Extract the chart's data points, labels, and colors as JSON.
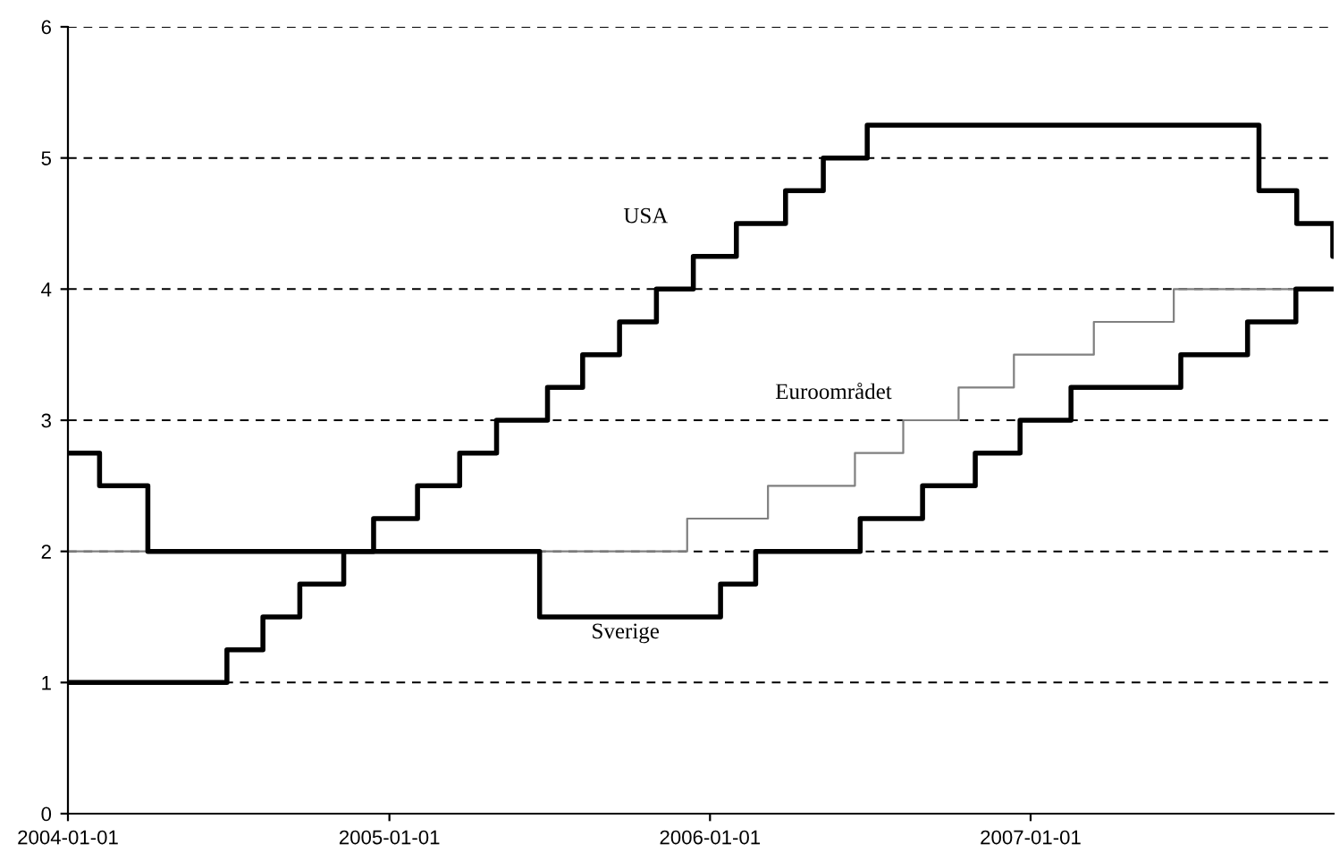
{
  "chart_data": {
    "type": "step",
    "xlim": [
      "2004-01-01",
      "2007-12-12"
    ],
    "xticks": [
      {
        "value": "2004-01-01",
        "label": "2004-01-01"
      },
      {
        "value": "2005-01-01",
        "label": "2005-01-01"
      },
      {
        "value": "2006-01-01",
        "label": "2006-01-01"
      },
      {
        "value": "2007-01-01",
        "label": "2007-01-01"
      }
    ],
    "ylim": [
      0,
      6
    ],
    "yticks": [
      0,
      1,
      2,
      3,
      4,
      5,
      6
    ],
    "grid": "y",
    "legend": false,
    "marker": "none",
    "line_style": "solid",
    "series": [
      {
        "name": "USA",
        "color": "#000000",
        "x": [
          "2004-01-01",
          "2004-06-30",
          "2004-08-10",
          "2004-09-21",
          "2004-11-10",
          "2004-12-14",
          "2005-02-02",
          "2005-03-22",
          "2005-05-03",
          "2005-06-30",
          "2005-08-09",
          "2005-09-20",
          "2005-11-01",
          "2005-12-13",
          "2006-01-31",
          "2006-03-28",
          "2006-05-10",
          "2006-06-29",
          "2007-09-18",
          "2007-10-31",
          "2007-12-11",
          "2007-12-12"
        ],
        "values": [
          1.0,
          1.25,
          1.5,
          1.75,
          2.0,
          2.25,
          2.5,
          2.75,
          3.0,
          3.25,
          3.5,
          3.75,
          4.0,
          4.25,
          4.5,
          4.75,
          5.0,
          5.25,
          4.75,
          4.5,
          4.25,
          4.25
        ]
      },
      {
        "name": "Euroområdet",
        "color": "#808080",
        "x": [
          "2004-01-01",
          "2005-12-06",
          "2006-03-08",
          "2006-06-15",
          "2006-08-09",
          "2006-10-11",
          "2006-12-13",
          "2007-03-14",
          "2007-06-13",
          "2007-12-12"
        ],
        "values": [
          2.0,
          2.25,
          2.5,
          2.75,
          3.0,
          3.25,
          3.5,
          3.75,
          4.0,
          4.0
        ]
      },
      {
        "name": "Sverige",
        "color": "#000000",
        "x": [
          "2004-01-01",
          "2004-02-06",
          "2004-04-01",
          "2005-06-21",
          "2006-01-13",
          "2006-02-22",
          "2006-06-21",
          "2006-08-31",
          "2006-10-30",
          "2006-12-20",
          "2007-02-16",
          "2007-06-21",
          "2007-09-05",
          "2007-10-30",
          "2007-12-12"
        ],
        "values": [
          2.75,
          2.5,
          2.0,
          1.5,
          1.75,
          2.0,
          2.25,
          2.5,
          2.75,
          3.0,
          3.25,
          3.5,
          3.75,
          4.0,
          4.0
        ]
      }
    ]
  }
}
